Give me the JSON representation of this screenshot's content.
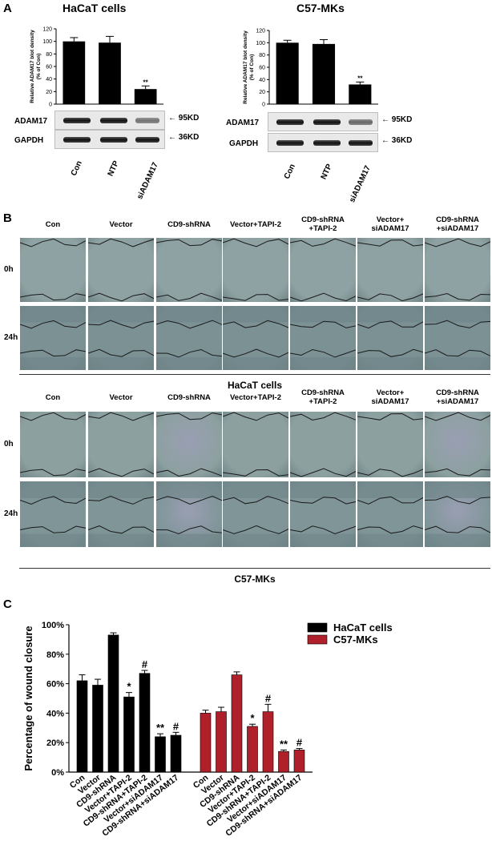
{
  "panel_a": {
    "letter": "A",
    "left": {
      "title": "HaCaT cells",
      "ylabel_line1": "Relative ADAM17 blot density",
      "ylabel_line2": "(% of Con)",
      "blot1_label": "ADAM17",
      "blot2_label": "GAPDH",
      "kd1": "95KD",
      "kd2": "36KD",
      "sig": "**",
      "lanes": [
        "Con",
        "NTP",
        "siADAM17"
      ]
    },
    "right": {
      "title": "C57-MKs",
      "ylabel_line1": "Relative ADAM17 blot density",
      "ylabel_line2": "(% of Con)",
      "blot1_label": "ADAM17",
      "blot2_label": "GAPDH",
      "kd1": "95KD",
      "kd2": "36KD",
      "sig": "**",
      "lanes": [
        "Con",
        "NTP",
        "siADAM17"
      ]
    }
  },
  "panel_b": {
    "letter": "B",
    "conditions": [
      [
        "Con"
      ],
      [
        "Vector"
      ],
      [
        "CD9-shRNA"
      ],
      [
        "Vector+TAPI-2"
      ],
      [
        "CD9-shRNA",
        "+TAPI-2"
      ],
      [
        "Vector+",
        "siADAM17"
      ],
      [
        "CD9-shRNA",
        "+siADAM17"
      ]
    ],
    "rows": [
      "0h",
      "24h"
    ],
    "group1": "HaCaT cells",
    "group2": "C57-MKs"
  },
  "panel_c": {
    "letter": "C",
    "legend": [
      {
        "name": "HaCaT cells",
        "color": "#000000"
      },
      {
        "name": "C57-MKs",
        "color": "#b0202a"
      }
    ]
  },
  "chart_data": [
    {
      "type": "bar",
      "title": "HaCaT cells",
      "ylabel": "Relative ADAM17 blot density (% of Con)",
      "categories": [
        "Con",
        "NTP",
        "siADAM17"
      ],
      "values": [
        100,
        98,
        24
      ],
      "errors": [
        6,
        10,
        5
      ],
      "annotations": [
        "",
        "",
        "**"
      ],
      "ylim": [
        0,
        120
      ],
      "yticks": [
        0,
        20,
        40,
        60,
        80,
        100,
        120
      ],
      "color": "#000000"
    },
    {
      "type": "bar",
      "title": "C57-MKs",
      "ylabel": "Relative ADAM17 blot density (% of Con)",
      "categories": [
        "Con",
        "NTP",
        "siADAM17"
      ],
      "values": [
        100,
        98,
        32
      ],
      "errors": [
        4,
        7,
        4
      ],
      "annotations": [
        "",
        "",
        "**"
      ],
      "ylim": [
        0,
        120
      ],
      "yticks": [
        0,
        20,
        40,
        60,
        80,
        100,
        120
      ],
      "color": "#000000"
    },
    {
      "type": "bar",
      "ylabel": "Percentage of wound closure",
      "categories": [
        "Con",
        "Vector",
        "CD9-shRNA",
        "Vector+TAPI-2",
        "CD9-shRNA+TAPI-2",
        "Vector+siADAM17",
        "CD9-shRNA+siADAM17"
      ],
      "series": [
        {
          "name": "HaCaT cells",
          "color": "#000000",
          "values": [
            62,
            59,
            93,
            51,
            67,
            24,
            25
          ],
          "errors": [
            4,
            4,
            1.5,
            3,
            2,
            2,
            2
          ],
          "annotations": [
            "",
            "",
            "",
            "*",
            "#",
            "**",
            "#"
          ]
        },
        {
          "name": "C57-MKs",
          "color": "#b0202a",
          "values": [
            40,
            41,
            66,
            31,
            41,
            14,
            15
          ],
          "errors": [
            2,
            3,
            2,
            1.5,
            5,
            1,
            1
          ],
          "annotations": [
            "",
            "",
            "",
            "*",
            "#",
            "**",
            "#"
          ]
        }
      ],
      "ylim": [
        0,
        100
      ],
      "yticks": [
        "0%",
        "20%",
        "40%",
        "60%",
        "80%",
        "100%"
      ],
      "legend": "top-right"
    }
  ]
}
